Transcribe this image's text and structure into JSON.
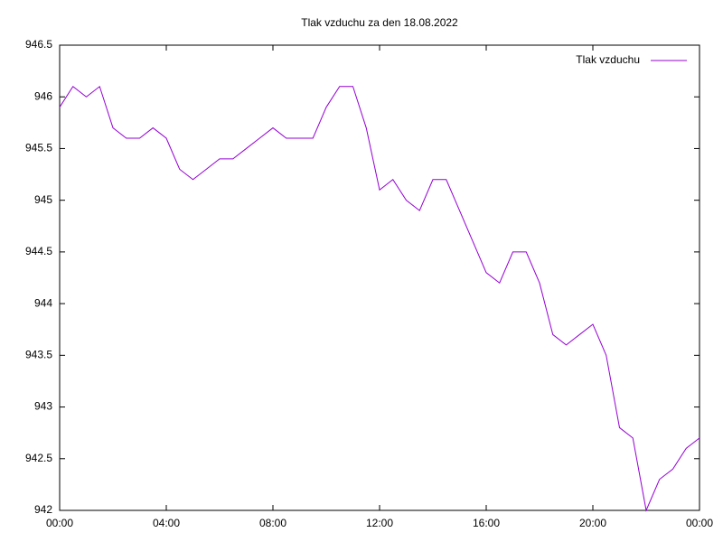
{
  "chart_data": {
    "type": "line",
    "title": "Tlak vzduchu za den 18.08.2022",
    "x": [
      0,
      0.5,
      1,
      1.5,
      2,
      2.5,
      3,
      3.5,
      4,
      4.5,
      5,
      5.5,
      6,
      6.5,
      7,
      7.5,
      8,
      8.5,
      9,
      9.5,
      10,
      10.5,
      11,
      11.5,
      12,
      12.5,
      13,
      13.5,
      14,
      14.5,
      15,
      15.5,
      16,
      16.5,
      17,
      17.5,
      18,
      18.5,
      19,
      19.5,
      20,
      20.5,
      21,
      21.5,
      22,
      22.5,
      23,
      23.5,
      24
    ],
    "series": [
      {
        "name": "Tlak vzduchu",
        "color": "#9400d3",
        "values": [
          945.9,
          946.1,
          946.0,
          946.1,
          945.7,
          945.6,
          945.6,
          945.7,
          945.6,
          945.3,
          945.2,
          945.3,
          945.4,
          945.4,
          945.5,
          945.6,
          945.7,
          945.6,
          945.6,
          945.6,
          945.9,
          946.1,
          946.1,
          945.7,
          945.1,
          945.2,
          945.0,
          944.9,
          945.2,
          945.2,
          944.9,
          944.6,
          944.3,
          944.2,
          944.5,
          944.5,
          944.2,
          943.7,
          943.6,
          943.7,
          943.8,
          943.5,
          942.8,
          942.7,
          942.0,
          942.3,
          942.4,
          942.6,
          942.7
        ]
      }
    ],
    "xlim": [
      0,
      24
    ],
    "xticks": [
      {
        "value": 0,
        "label": "00:00"
      },
      {
        "value": 4,
        "label": "04:00"
      },
      {
        "value": 8,
        "label": "08:00"
      },
      {
        "value": 12,
        "label": "12:00"
      },
      {
        "value": 16,
        "label": "16:00"
      },
      {
        "value": 20,
        "label": "20:00"
      },
      {
        "value": 24,
        "label": "00:00"
      }
    ],
    "ylim": [
      942,
      946.5
    ],
    "yticks": [
      942,
      942.5,
      943,
      943.5,
      944,
      944.5,
      945,
      945.5,
      946,
      946.5
    ],
    "grid": false,
    "legend": "top-right"
  }
}
